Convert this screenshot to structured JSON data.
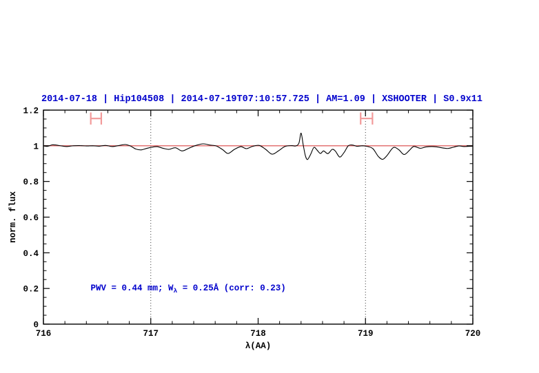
{
  "colors": {
    "accent_blue": "#0000cc",
    "curve": "#000000",
    "frame": "#000000",
    "reference_red": "#e06666",
    "marker_red": "#f29a9a",
    "dotted_line": "#333333"
  },
  "chart_data": {
    "type": "line",
    "title": "2014-07-18 | Hip104508 | 2014-07-19T07:10:57.725 | AM=1.09 | XSHOOTER | S0.9x11",
    "xlabel": "λ(AA)",
    "ylabel": "norm. flux",
    "xlim": [
      716,
      720
    ],
    "ylim": [
      0,
      1.2
    ],
    "x_major_ticks": [
      716,
      717,
      718,
      719,
      720
    ],
    "x_tick_labels": [
      "716",
      "717",
      "718",
      "719",
      "720"
    ],
    "x_minor_step": 0.2,
    "y_major_ticks": [
      0,
      0.2,
      0.4,
      0.6,
      0.8,
      1,
      1.2
    ],
    "y_tick_labels": [
      "0",
      "0.2",
      "0.4",
      "0.6",
      "0.8",
      "1",
      "1.2"
    ],
    "y_minor_step": 0.05,
    "grid": "off",
    "dotted_vlines": [
      717,
      719
    ],
    "reference_line": {
      "y": 1.0
    },
    "range_markers": [
      {
        "x_center": 716.49,
        "half_width": 0.049,
        "y": 1.153,
        "cap_half_height": 0.034
      },
      {
        "x_center": 719.01,
        "half_width": 0.055,
        "y": 1.153,
        "cap_half_height": 0.034
      }
    ],
    "annotation": {
      "pre": "PWV  =  0.44  mm; W",
      "sub": "λ",
      "post": "  =  0.25Å  (corr: 0.23)",
      "x": 716.44,
      "y": 0.19
    },
    "series": [
      {
        "name": "normalized spectrum",
        "points": [
          [
            716.0,
            0.999
          ],
          [
            716.04,
            0.997
          ],
          [
            716.08,
            1.005
          ],
          [
            716.12,
            1.004
          ],
          [
            716.17,
            0.999
          ],
          [
            716.22,
            0.996
          ],
          [
            716.28,
            1.0
          ],
          [
            716.34,
            1.001
          ],
          [
            716.4,
            0.999
          ],
          [
            716.46,
            1.0
          ],
          [
            716.52,
            0.998
          ],
          [
            716.58,
            1.002
          ],
          [
            716.64,
            0.996
          ],
          [
            716.7,
            1.001
          ],
          [
            716.76,
            1.007
          ],
          [
            716.81,
            0.999
          ],
          [
            716.86,
            0.982
          ],
          [
            716.91,
            0.977
          ],
          [
            716.96,
            0.985
          ],
          [
            717.01,
            0.992
          ],
          [
            717.06,
            0.995
          ],
          [
            717.12,
            0.985
          ],
          [
            717.17,
            0.98
          ],
          [
            717.23,
            0.989
          ],
          [
            717.29,
            0.971
          ],
          [
            717.35,
            0.985
          ],
          [
            717.42,
            1.002
          ],
          [
            717.49,
            1.011
          ],
          [
            717.55,
            1.004
          ],
          [
            717.61,
            0.999
          ],
          [
            717.67,
            0.978
          ],
          [
            717.72,
            0.957
          ],
          [
            717.78,
            0.98
          ],
          [
            717.84,
            0.995
          ],
          [
            717.89,
            0.984
          ],
          [
            717.95,
            0.997
          ],
          [
            718.01,
            1.002
          ],
          [
            718.07,
            0.98
          ],
          [
            718.13,
            0.953
          ],
          [
            718.19,
            0.972
          ],
          [
            718.25,
            0.996
          ],
          [
            718.31,
            1.001
          ],
          [
            718.35,
            0.999
          ],
          [
            718.38,
            1.015
          ],
          [
            718.4,
            1.071
          ],
          [
            718.42,
            1.005
          ],
          [
            718.44,
            0.945
          ],
          [
            718.46,
            0.923
          ],
          [
            718.49,
            0.953
          ],
          [
            718.52,
            0.991
          ],
          [
            718.55,
            0.975
          ],
          [
            718.58,
            0.957
          ],
          [
            718.61,
            0.971
          ],
          [
            718.65,
            0.956
          ],
          [
            718.69,
            0.98
          ],
          [
            718.72,
            0.97
          ],
          [
            718.76,
            0.937
          ],
          [
            718.8,
            0.962
          ],
          [
            718.84,
            1.0
          ],
          [
            718.88,
            1.004
          ],
          [
            718.92,
            0.997
          ],
          [
            718.97,
            1.0
          ],
          [
            719.02,
            0.996
          ],
          [
            719.07,
            0.983
          ],
          [
            719.12,
            0.94
          ],
          [
            719.16,
            0.924
          ],
          [
            719.2,
            0.945
          ],
          [
            719.26,
            0.99
          ],
          [
            719.31,
            0.978
          ],
          [
            719.36,
            0.951
          ],
          [
            719.41,
            0.975
          ],
          [
            719.45,
            0.996
          ],
          [
            719.51,
            0.986
          ],
          [
            719.56,
            0.993
          ],
          [
            719.62,
            0.996
          ],
          [
            719.67,
            0.993
          ],
          [
            719.73,
            0.987
          ],
          [
            719.77,
            0.985
          ],
          [
            719.82,
            0.992
          ],
          [
            719.87,
            0.999
          ],
          [
            719.92,
            0.996
          ],
          [
            720.0,
            0.998
          ]
        ]
      }
    ]
  }
}
